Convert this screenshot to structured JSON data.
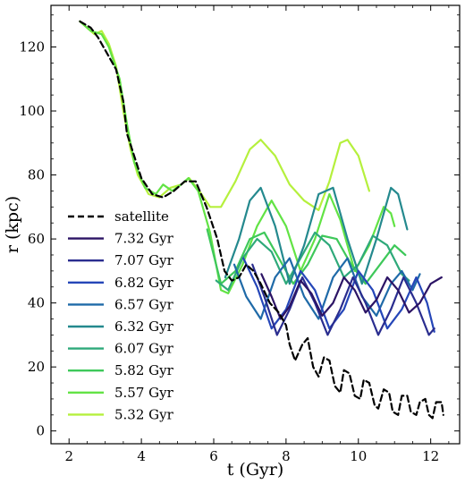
{
  "chart_data": {
    "type": "line",
    "title": "",
    "xlabel": "t (Gyr)",
    "ylabel": "r (kpc)",
    "xlim": [
      1.5,
      12.8
    ],
    "ylim": [
      -4,
      133
    ],
    "xticks": [
      2,
      4,
      6,
      8,
      10,
      12
    ],
    "yticks": [
      0,
      20,
      40,
      60,
      80,
      100,
      120
    ],
    "legend_position": "center-left",
    "grid": false,
    "series": [
      {
        "name": "satellite",
        "color": "#000000",
        "dash": true,
        "points": [
          [
            2.3,
            128
          ],
          [
            2.6,
            126
          ],
          [
            2.8,
            123
          ],
          [
            3.0,
            119
          ],
          [
            3.3,
            113
          ],
          [
            3.5,
            103
          ],
          [
            3.6,
            93
          ],
          [
            3.8,
            86
          ],
          [
            4.0,
            79
          ],
          [
            4.3,
            74
          ],
          [
            4.6,
            73
          ],
          [
            4.9,
            75
          ],
          [
            5.2,
            78
          ],
          [
            5.5,
            78
          ],
          [
            5.8,
            70
          ],
          [
            6.1,
            60
          ],
          [
            6.3,
            50
          ],
          [
            6.5,
            47
          ],
          [
            6.7,
            48
          ],
          [
            6.9,
            52
          ],
          [
            7.1,
            50
          ],
          [
            7.3,
            46
          ],
          [
            7.55,
            40
          ],
          [
            7.8,
            37
          ],
          [
            8.0,
            33
          ],
          [
            8.1,
            27
          ],
          [
            8.25,
            22
          ],
          [
            8.45,
            27
          ],
          [
            8.6,
            29
          ],
          [
            8.75,
            20
          ],
          [
            8.9,
            17
          ],
          [
            9.05,
            23
          ],
          [
            9.2,
            22
          ],
          [
            9.35,
            14
          ],
          [
            9.5,
            12
          ],
          [
            9.6,
            19
          ],
          [
            9.75,
            18
          ],
          [
            9.9,
            11
          ],
          [
            10.05,
            10
          ],
          [
            10.15,
            16
          ],
          [
            10.3,
            15
          ],
          [
            10.45,
            8
          ],
          [
            10.55,
            7
          ],
          [
            10.7,
            13
          ],
          [
            10.85,
            12
          ],
          [
            10.95,
            6
          ],
          [
            11.1,
            5
          ],
          [
            11.2,
            11
          ],
          [
            11.35,
            11
          ],
          [
            11.45,
            6
          ],
          [
            11.6,
            5
          ],
          [
            11.7,
            9
          ],
          [
            11.85,
            10
          ],
          [
            11.95,
            5
          ],
          [
            12.05,
            4
          ],
          [
            12.15,
            9
          ],
          [
            12.3,
            9
          ],
          [
            12.35,
            5
          ]
        ]
      },
      {
        "name": "7.32 Gyr",
        "color": "#2c1465",
        "dash": false,
        "points": [
          [
            7.32,
            49
          ],
          [
            7.6,
            42
          ],
          [
            7.85,
            35
          ],
          [
            8.1,
            39
          ],
          [
            8.4,
            47
          ],
          [
            8.7,
            43
          ],
          [
            9.0,
            36
          ],
          [
            9.3,
            40
          ],
          [
            9.6,
            48
          ],
          [
            9.9,
            44
          ],
          [
            10.2,
            37
          ],
          [
            10.5,
            41
          ],
          [
            10.8,
            48
          ],
          [
            11.1,
            44
          ],
          [
            11.4,
            37
          ],
          [
            11.7,
            40
          ],
          [
            12.0,
            46
          ],
          [
            12.3,
            48
          ]
        ]
      },
      {
        "name": "7.07 Gyr",
        "color": "#2a2d8f",
        "dash": false,
        "points": [
          [
            7.07,
            52
          ],
          [
            7.4,
            42
          ],
          [
            7.75,
            30
          ],
          [
            8.1,
            38
          ],
          [
            8.45,
            48
          ],
          [
            8.8,
            40
          ],
          [
            9.15,
            30
          ],
          [
            9.5,
            38
          ],
          [
            9.85,
            48
          ],
          [
            10.2,
            40
          ],
          [
            10.55,
            30
          ],
          [
            10.9,
            38
          ],
          [
            11.25,
            48
          ],
          [
            11.6,
            40
          ],
          [
            11.95,
            30
          ],
          [
            12.1,
            32
          ]
        ]
      },
      {
        "name": "6.82 Gyr",
        "color": "#2546b8",
        "dash": false,
        "points": [
          [
            6.82,
            54
          ],
          [
            7.2,
            45
          ],
          [
            7.6,
            32
          ],
          [
            8.0,
            38
          ],
          [
            8.4,
            50
          ],
          [
            8.8,
            44
          ],
          [
            9.2,
            32
          ],
          [
            9.6,
            38
          ],
          [
            10.0,
            50
          ],
          [
            10.4,
            44
          ],
          [
            10.8,
            32
          ],
          [
            11.2,
            38
          ],
          [
            11.6,
            48
          ],
          [
            11.9,
            40
          ],
          [
            12.1,
            31
          ]
        ]
      },
      {
        "name": "6.57 Gyr",
        "color": "#1f6aa8",
        "dash": false,
        "points": [
          [
            6.57,
            52
          ],
          [
            6.9,
            42
          ],
          [
            7.3,
            35
          ],
          [
            7.7,
            48
          ],
          [
            8.1,
            54
          ],
          [
            8.5,
            42
          ],
          [
            8.9,
            35
          ],
          [
            9.3,
            48
          ],
          [
            9.7,
            54
          ],
          [
            10.1,
            42
          ],
          [
            10.5,
            36
          ],
          [
            10.9,
            46
          ],
          [
            11.2,
            50
          ],
          [
            11.5,
            44
          ],
          [
            11.7,
            49
          ]
        ]
      },
      {
        "name": "6.32 Gyr",
        "color": "#24898e",
        "dash": false,
        "points": [
          [
            6.32,
            48
          ],
          [
            6.7,
            60
          ],
          [
            7.0,
            72
          ],
          [
            7.3,
            76
          ],
          [
            7.7,
            64
          ],
          [
            8.1,
            46
          ],
          [
            8.5,
            58
          ],
          [
            8.9,
            74
          ],
          [
            9.3,
            76
          ],
          [
            9.7,
            60
          ],
          [
            10.1,
            46
          ],
          [
            10.5,
            60
          ],
          [
            10.9,
            76
          ],
          [
            11.1,
            74
          ],
          [
            11.35,
            63
          ]
        ]
      },
      {
        "name": "6.07 Gyr",
        "color": "#2ea97a",
        "dash": false,
        "points": [
          [
            6.07,
            47
          ],
          [
            6.4,
            44
          ],
          [
            6.8,
            54
          ],
          [
            7.2,
            60
          ],
          [
            7.6,
            56
          ],
          [
            8.0,
            46
          ],
          [
            8.4,
            54
          ],
          [
            8.8,
            62
          ],
          [
            9.2,
            58
          ],
          [
            9.6,
            48
          ],
          [
            10.0,
            52
          ],
          [
            10.4,
            61
          ],
          [
            10.8,
            58
          ],
          [
            11.2,
            49
          ],
          [
            11.4,
            47
          ]
        ]
      },
      {
        "name": "5.82 Gyr",
        "color": "#3ec85a",
        "dash": false,
        "points": [
          [
            5.82,
            63
          ],
          [
            6.2,
            46
          ],
          [
            6.6,
            50
          ],
          [
            7.0,
            60
          ],
          [
            7.4,
            62
          ],
          [
            7.8,
            54
          ],
          [
            8.2,
            46
          ],
          [
            8.6,
            52
          ],
          [
            9.0,
            61
          ],
          [
            9.4,
            60
          ],
          [
            9.8,
            52
          ],
          [
            10.2,
            46
          ],
          [
            10.6,
            52
          ],
          [
            11.0,
            58
          ],
          [
            11.3,
            55
          ]
        ]
      },
      {
        "name": "5.57 Gyr",
        "color": "#62e345",
        "dash": false,
        "points": [
          [
            2.3,
            128
          ],
          [
            2.6,
            125
          ],
          [
            2.9,
            124
          ],
          [
            3.1,
            120
          ],
          [
            3.4,
            110
          ],
          [
            3.6,
            96
          ],
          [
            3.8,
            84
          ],
          [
            4.1,
            76
          ],
          [
            4.4,
            74
          ],
          [
            4.6,
            77
          ],
          [
            4.85,
            75
          ],
          [
            5.1,
            77
          ],
          [
            5.3,
            79
          ],
          [
            5.57,
            75
          ],
          [
            5.9,
            62
          ],
          [
            6.2,
            44
          ],
          [
            6.4,
            43
          ],
          [
            6.8,
            52
          ],
          [
            7.2,
            64
          ],
          [
            7.6,
            72
          ],
          [
            8.0,
            64
          ],
          [
            8.4,
            50
          ],
          [
            8.8,
            60
          ],
          [
            9.2,
            74
          ],
          [
            9.5,
            66
          ],
          [
            9.9,
            50
          ],
          [
            10.3,
            58
          ],
          [
            10.7,
            70
          ],
          [
            10.9,
            68
          ],
          [
            11.0,
            64
          ]
        ]
      },
      {
        "name": "5.32 Gyr",
        "color": "#b5f03d",
        "dash": false,
        "points": [
          [
            2.3,
            128
          ],
          [
            2.5,
            126
          ],
          [
            2.7,
            124
          ],
          [
            2.9,
            125
          ],
          [
            3.1,
            121
          ],
          [
            3.3,
            114
          ],
          [
            3.5,
            100
          ],
          [
            3.7,
            88
          ],
          [
            3.9,
            80
          ],
          [
            4.2,
            74
          ],
          [
            4.5,
            73
          ],
          [
            4.8,
            76
          ],
          [
            5.1,
            77
          ],
          [
            5.32,
            79
          ],
          [
            5.6,
            75
          ],
          [
            5.9,
            70
          ],
          [
            6.2,
            70
          ],
          [
            6.6,
            78
          ],
          [
            7.0,
            88
          ],
          [
            7.3,
            91
          ],
          [
            7.7,
            86
          ],
          [
            8.1,
            77
          ],
          [
            8.5,
            72
          ],
          [
            8.9,
            69
          ],
          [
            9.2,
            78
          ],
          [
            9.5,
            90
          ],
          [
            9.7,
            91
          ],
          [
            10.0,
            86
          ],
          [
            10.3,
            75
          ]
        ]
      }
    ]
  }
}
